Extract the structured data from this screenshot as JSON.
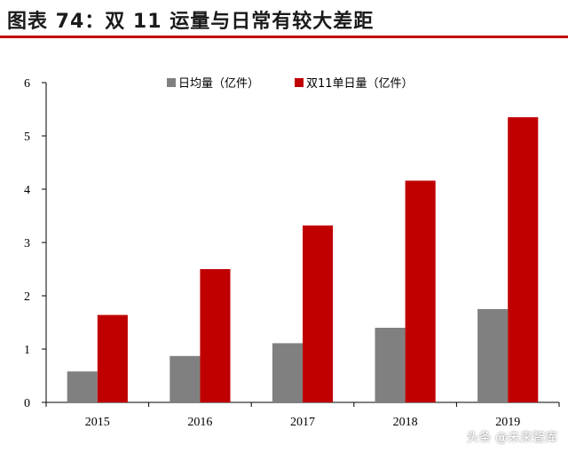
{
  "header": {
    "title": "图表 74：双 11 运量与日常有较大差距",
    "accent_color": "#c00000"
  },
  "watermark": "头条 @未来智库",
  "chart_data": {
    "type": "bar",
    "categories": [
      "2015",
      "2016",
      "2017",
      "2018",
      "2019"
    ],
    "series": [
      {
        "name": "日均量（亿件）",
        "color": "#808080",
        "values": [
          0.58,
          0.87,
          1.11,
          1.4,
          1.75
        ]
      },
      {
        "name": "双11单日量（亿件）",
        "color": "#c00000",
        "values": [
          1.64,
          2.5,
          3.32,
          4.16,
          5.35
        ]
      }
    ],
    "yticks": [
      "0",
      "1",
      "2",
      "3",
      "4",
      "5",
      "6"
    ],
    "ylim": [
      0,
      6
    ],
    "legend_position": "top-center",
    "grid": false
  }
}
